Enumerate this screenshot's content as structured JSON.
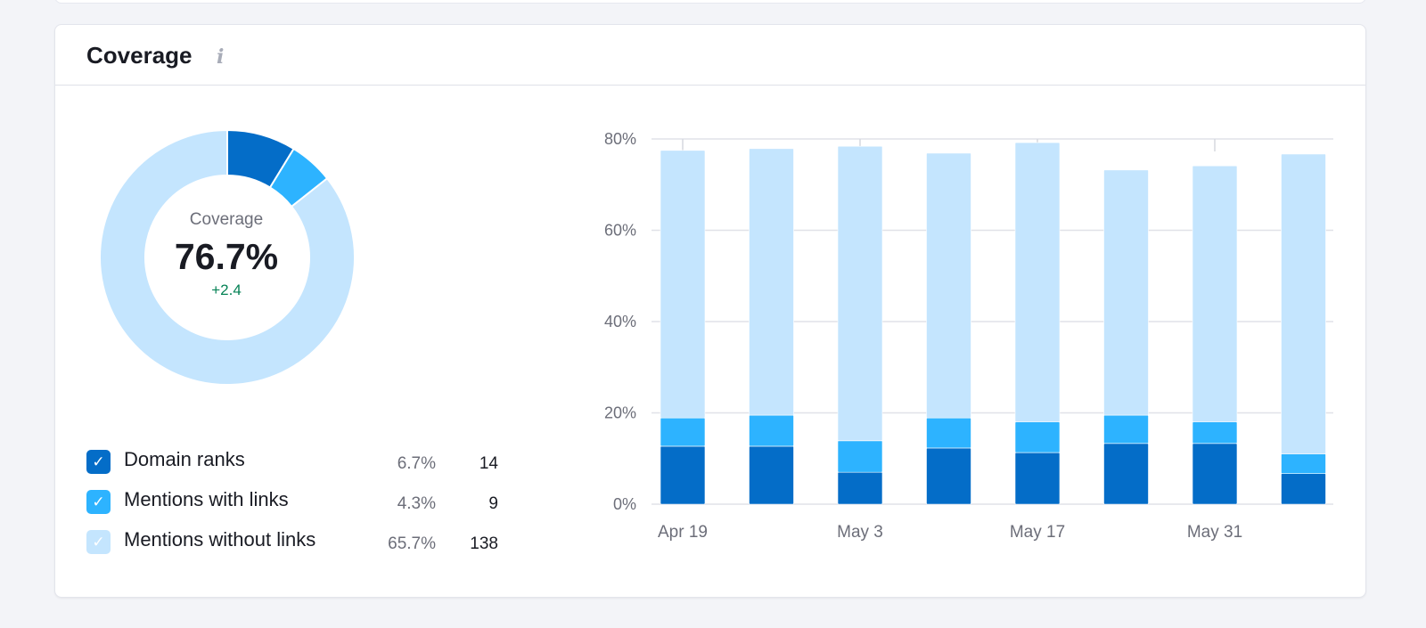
{
  "card": {
    "title": "Coverage",
    "info_icon": "info-icon"
  },
  "donut": {
    "label": "Coverage",
    "value": "76.7%",
    "delta": "+2.4"
  },
  "legend": [
    {
      "name": "Domain ranks",
      "percent": "6.7%",
      "count": "14",
      "color": "#046dc8",
      "checked": true
    },
    {
      "name": "Mentions with links",
      "percent": "4.3%",
      "count": "9",
      "color": "#2db3ff",
      "checked": true
    },
    {
      "name": "Mentions without links",
      "percent": "65.7%",
      "count": "138",
      "color": "#c4e5fe",
      "checked": true
    }
  ],
  "chart_data": [
    {
      "type": "pie",
      "variant": "donut",
      "categories": [
        "Domain ranks",
        "Mentions with links",
        "Mentions without links"
      ],
      "values": [
        6.7,
        4.3,
        65.7
      ],
      "colors": [
        "#046dc8",
        "#2db3ff",
        "#c4e5fe"
      ]
    },
    {
      "type": "bar",
      "stacked": true,
      "categories": [
        "Apr 19",
        "",
        "May 3",
        "",
        "May 17",
        "",
        "May 31",
        ""
      ],
      "series": [
        {
          "name": "Domain ranks",
          "color": "#046dc8",
          "values": [
            12.7,
            12.7,
            7.0,
            12.3,
            11.3,
            13.3,
            13.3,
            6.7
          ]
        },
        {
          "name": "Mentions with links",
          "color": "#2db3ff",
          "values": [
            6.2,
            6.8,
            6.9,
            6.6,
            6.7,
            6.2,
            4.7,
            4.3
          ]
        },
        {
          "name": "Mentions without links",
          "color": "#c4e5fe",
          "values": [
            58.6,
            58.4,
            64.5,
            58.0,
            61.2,
            53.7,
            56.1,
            65.7
          ]
        }
      ],
      "yticks": [
        "0%",
        "20%",
        "40%",
        "60%",
        "80%"
      ],
      "ylim": [
        0,
        80
      ],
      "grid": true
    }
  ]
}
